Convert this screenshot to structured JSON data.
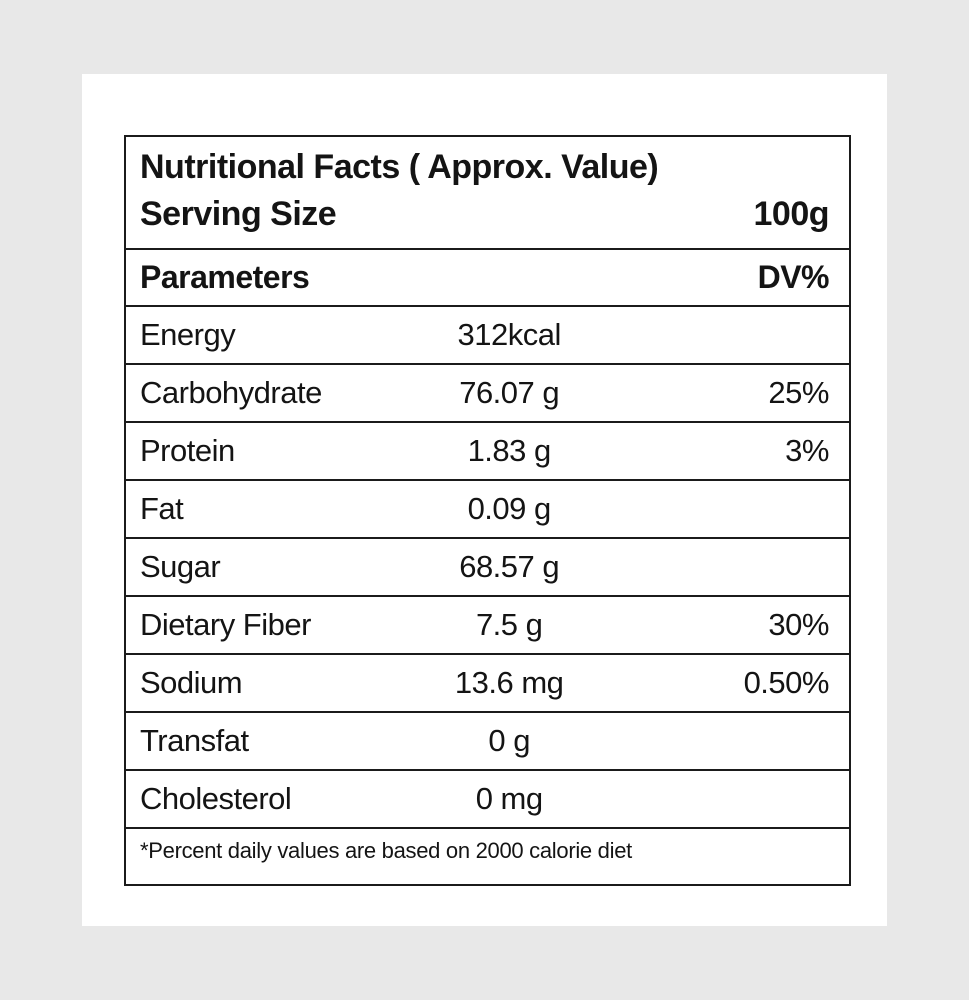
{
  "colors": {
    "background": "#e8e8e8",
    "card": "#ffffff",
    "border": "#1b1b1b",
    "text": "#141414"
  },
  "label": {
    "title": "Nutritional Facts ( Approx. Value)",
    "serving": {
      "label": "Serving Size",
      "value": "100g"
    },
    "header": {
      "parameter": "Parameters",
      "dv": "DV%"
    },
    "rows": [
      {
        "parameter": "Energy",
        "value": "312kcal",
        "dv": ""
      },
      {
        "parameter": "Carbohydrate",
        "value": "76.07 g",
        "dv": "25%"
      },
      {
        "parameter": "Protein",
        "value": "1.83 g",
        "dv": "3%"
      },
      {
        "parameter": "Fat",
        "value": "0.09 g",
        "dv": ""
      },
      {
        "parameter": "Sugar",
        "value": "68.57 g",
        "dv": ""
      },
      {
        "parameter": "Dietary Fiber",
        "value": "7.5 g",
        "dv": "30%"
      },
      {
        "parameter": "Sodium",
        "value": "13.6 mg",
        "dv": "0.50%"
      },
      {
        "parameter": "Transfat",
        "value": "0 g",
        "dv": ""
      },
      {
        "parameter": "Cholesterol",
        "value": "0 mg",
        "dv": ""
      }
    ],
    "footnote": "*Percent daily values are based on 2000 calorie diet"
  }
}
